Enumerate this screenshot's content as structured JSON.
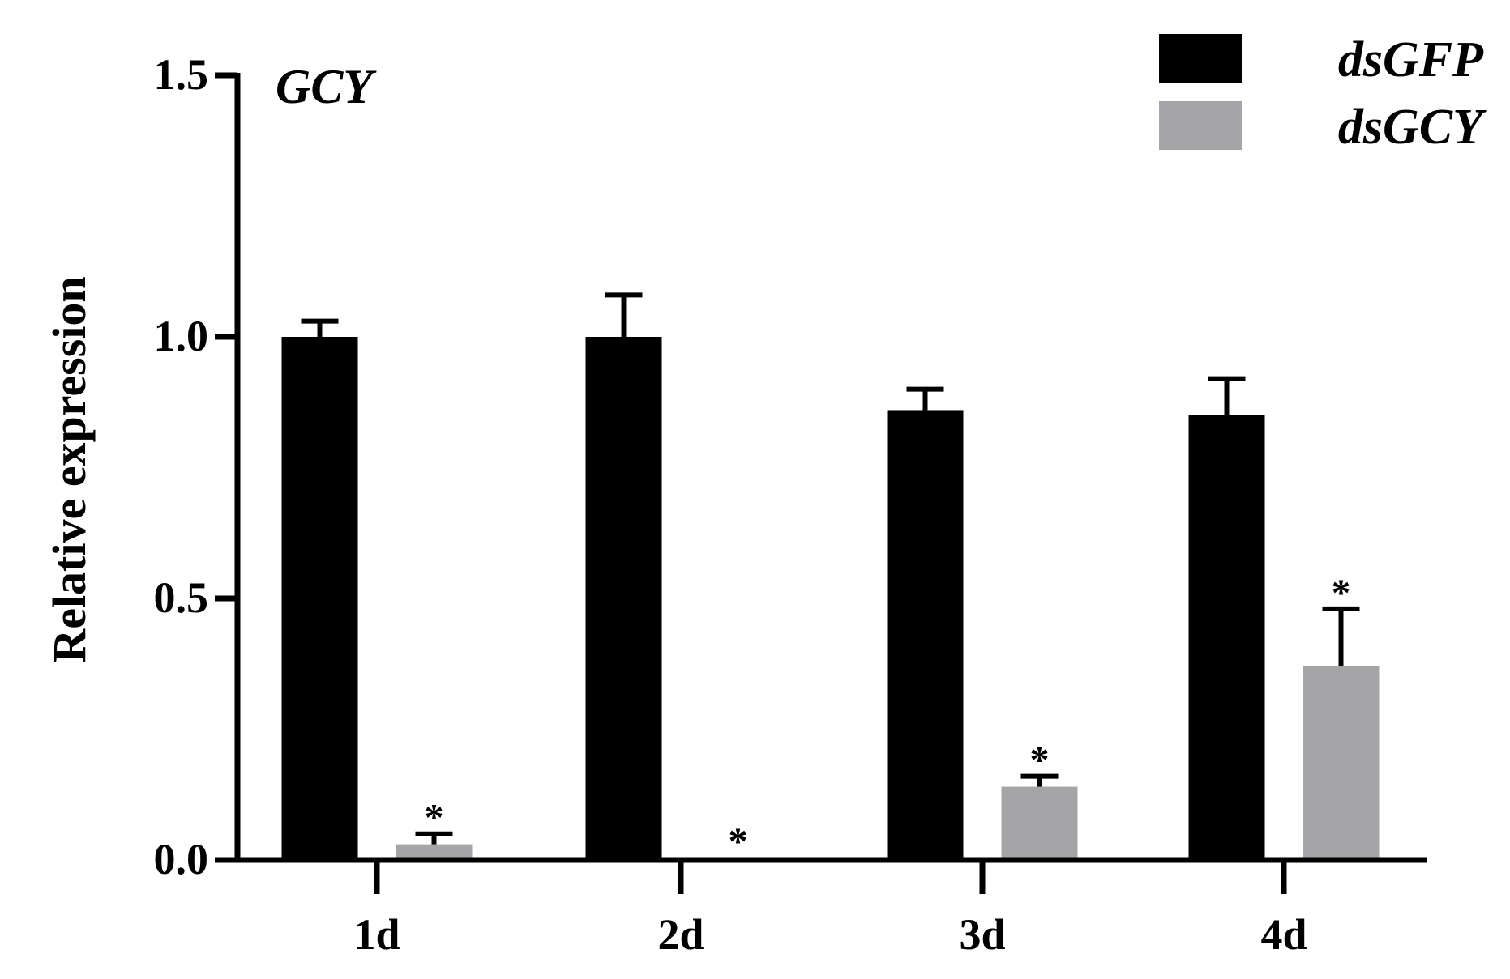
{
  "chart_data": {
    "type": "bar",
    "title": "GCY",
    "xlabel": "",
    "ylabel": "Relative expression",
    "categories": [
      "1d",
      "2d",
      "3d",
      "4d"
    ],
    "ylim": [
      0,
      1.5
    ],
    "yticks": [
      0.0,
      0.5,
      1.0,
      1.5
    ],
    "ytick_labels": [
      "0.0",
      "0.5",
      "1.0",
      "1.5"
    ],
    "grid": false,
    "legend_position": "top-right",
    "series": [
      {
        "name": "dsGFP",
        "color": "#000000",
        "values": [
          1.0,
          1.0,
          0.86,
          0.85
        ],
        "errors": [
          0.03,
          0.08,
          0.04,
          0.07
        ],
        "annotations": [
          "",
          "",
          "",
          ""
        ]
      },
      {
        "name": "dsGCY",
        "color": "#a5a5a8",
        "values": [
          0.03,
          0.005,
          0.14,
          0.37
        ],
        "errors": [
          0.02,
          0.0,
          0.02,
          0.11
        ],
        "annotations": [
          "*",
          "*",
          "*",
          "*"
        ]
      }
    ]
  }
}
